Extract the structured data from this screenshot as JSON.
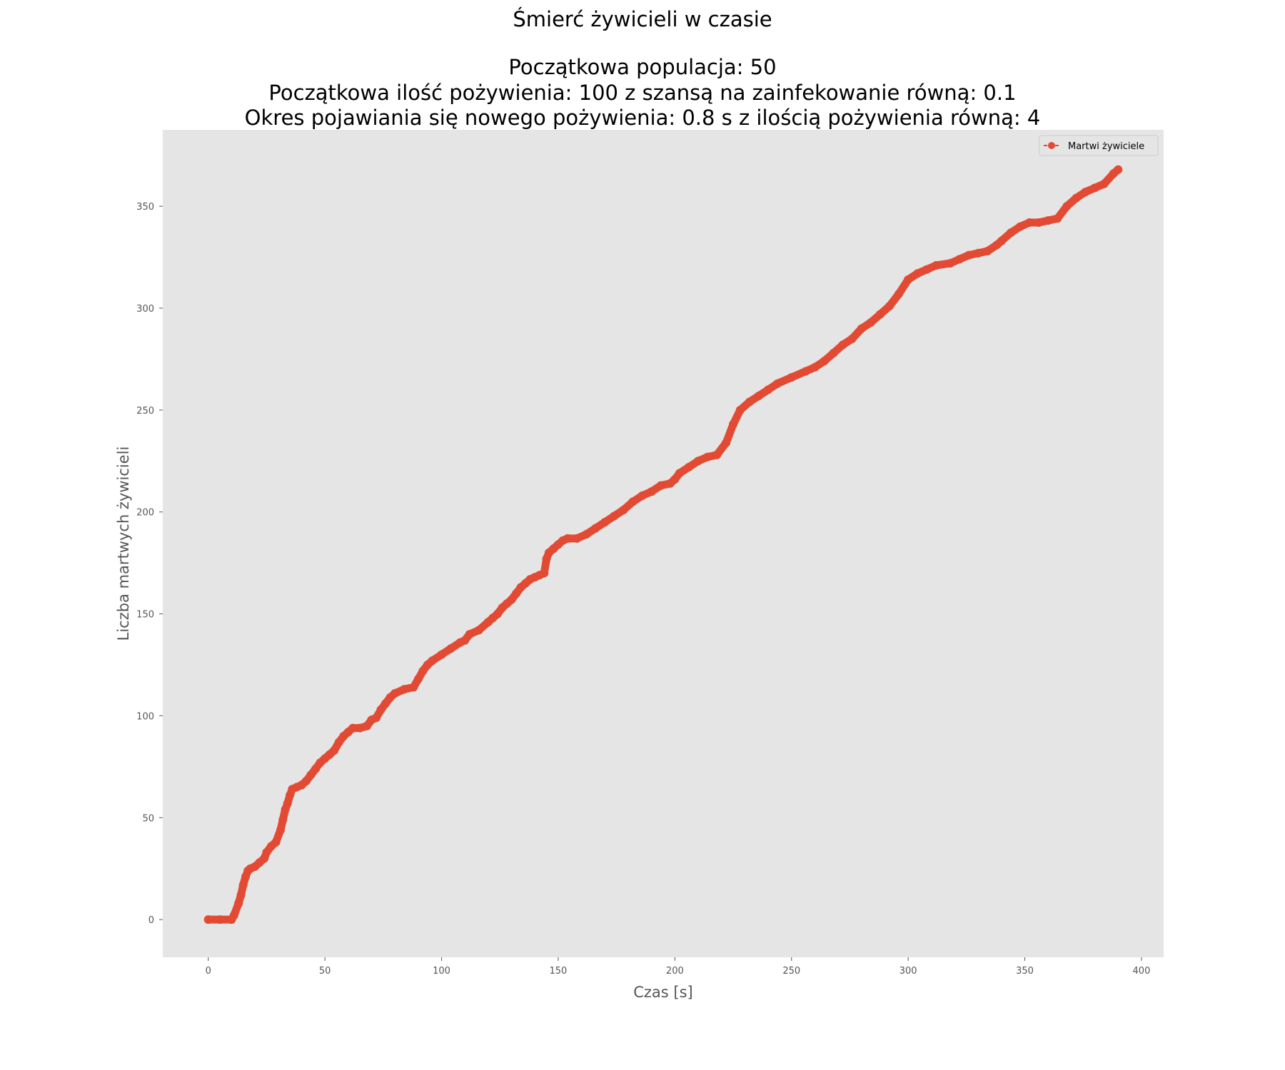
{
  "chart_data": {
    "type": "line",
    "title": "Śmierć żywicieli w czasie",
    "subtitle_lines": [
      "Początkowa populacja: 50",
      "Początkowa ilość pożywienia: 100 z szansą na zainfekowanie równą: 0.1",
      "Okres pojawiania się nowego pożywienia: 0.8 s z ilością pożywienia równą: 4"
    ],
    "xlabel": "Czas [s]",
    "ylabel": "Liczba martwych żywicieli",
    "xlim": [
      -19.5,
      409.5
    ],
    "ylim": [
      -18.5,
      387.5
    ],
    "xticks": [
      0,
      50,
      100,
      150,
      200,
      250,
      300,
      350,
      400
    ],
    "yticks": [
      0,
      50,
      100,
      150,
      200,
      250,
      300,
      350
    ],
    "grid": false,
    "legend_position": "top-right",
    "colors": {
      "series": "#e24a33",
      "plot_bg": "#e5e5e5",
      "tick_text": "#555555",
      "label_text": "#555555"
    },
    "series": [
      {
        "name": "Martwi żywiciele",
        "marker": "circle",
        "linestyle": "dashed",
        "x": [
          0,
          5,
          10,
          11,
          13,
          14,
          15,
          16,
          17,
          18,
          20,
          22,
          24,
          25,
          27,
          29,
          31,
          32,
          33,
          34,
          35,
          36,
          38,
          40,
          42,
          44,
          46,
          48,
          50,
          52,
          54,
          56,
          58,
          60,
          62,
          65,
          68,
          70,
          72,
          74,
          76,
          78,
          80,
          84,
          88,
          90,
          92,
          94,
          96,
          100,
          104,
          108,
          110,
          112,
          116,
          120,
          122,
          124,
          126,
          128,
          130,
          132,
          134,
          136,
          138,
          140,
          142,
          144,
          145,
          146,
          148,
          150,
          152,
          154,
          158,
          162,
          166,
          170,
          174,
          178,
          182,
          186,
          190,
          194,
          198,
          200,
          202,
          206,
          210,
          214,
          218,
          222,
          225,
          228,
          232,
          236,
          240,
          244,
          250,
          256,
          260,
          264,
          268,
          272,
          276,
          280,
          284,
          288,
          292,
          296,
          300,
          304,
          308,
          312,
          318,
          322,
          326,
          330,
          334,
          338,
          340,
          344,
          348,
          352,
          356,
          360,
          364,
          368,
          372,
          376,
          380,
          384,
          388,
          390
        ],
        "y": [
          0,
          0,
          0,
          2,
          8,
          12,
          17,
          21,
          24,
          25,
          26,
          28,
          30,
          33,
          36,
          38,
          44,
          49,
          54,
          57,
          61,
          64,
          65,
          66,
          68,
          71,
          74,
          77,
          79,
          81,
          83,
          87,
          90,
          92,
          94,
          94,
          95,
          98,
          99,
          103,
          106,
          109,
          111,
          113,
          114,
          118,
          122,
          125,
          127,
          130,
          133,
          136,
          137,
          140,
          142,
          146,
          148,
          150,
          153,
          155,
          157,
          160,
          163,
          165,
          167,
          168,
          169,
          170,
          177,
          180,
          182,
          184,
          186,
          187,
          187,
          189,
          192,
          195,
          198,
          201,
          205,
          208,
          210,
          213,
          214,
          216,
          219,
          222,
          225,
          227,
          228,
          234,
          243,
          250,
          254,
          257,
          260,
          263,
          266,
          269,
          271,
          274,
          278,
          282,
          285,
          290,
          293,
          297,
          301,
          307,
          314,
          317,
          319,
          321,
          322,
          324,
          326,
          327,
          328,
          331,
          333,
          337,
          340,
          342,
          342,
          343,
          344,
          350,
          354,
          357,
          359,
          361,
          366,
          368
        ]
      }
    ]
  }
}
